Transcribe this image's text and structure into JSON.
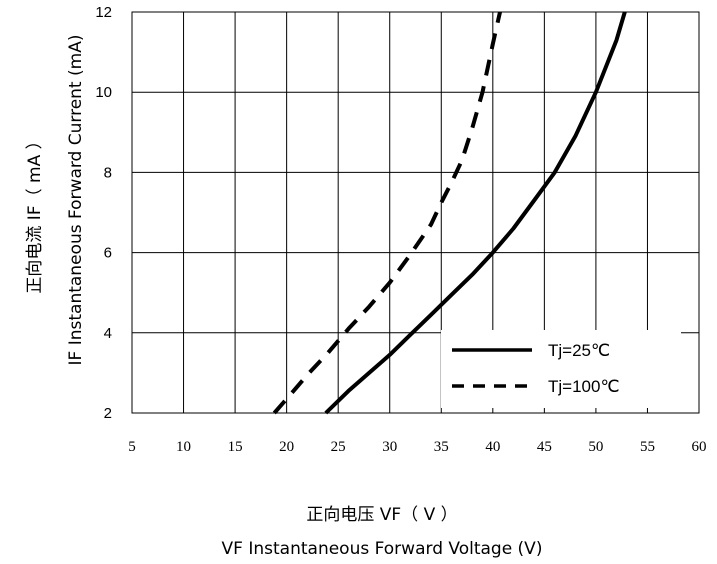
{
  "chart_data": {
    "type": "line",
    "ylabel_cn": "正向电流  IF（ mA ）",
    "ylabel_en": "IF Instantaneous Forward Current (mA)",
    "xlabel_cn": "正向电压  VF（ V ）",
    "xlabel_en": "VF  Instantaneous Forward Voltage (V)",
    "xlim": [
      5,
      60
    ],
    "ylim": [
      2,
      12
    ],
    "x_ticks": [
      "5",
      "10",
      "15",
      "20",
      "25",
      "30",
      "35",
      "40",
      "45",
      "50",
      "55",
      "60"
    ],
    "y_ticks": [
      "2",
      "4",
      "6",
      "8",
      "10",
      "12"
    ],
    "grid": true,
    "legend_position": "bottom-right",
    "series": [
      {
        "name": "Tj=25℃",
        "line_style": "solid",
        "color": "#000000",
        "x": [
          23.8,
          26,
          28,
          30,
          32,
          34,
          36,
          38,
          40,
          42,
          44,
          46,
          48,
          50,
          52,
          52.8
        ],
        "y": [
          2.0,
          2.55,
          3.0,
          3.45,
          3.95,
          4.45,
          4.95,
          5.45,
          6.0,
          6.6,
          7.3,
          8.0,
          8.9,
          10.0,
          11.3,
          12.0
        ]
      },
      {
        "name": "Tj=100℃",
        "line_style": "dashed",
        "color": "#000000",
        "x": [
          18.8,
          20,
          22,
          24,
          26,
          28,
          30,
          32,
          34,
          35,
          36,
          37,
          38,
          39,
          40,
          40.7
        ],
        "y": [
          2.0,
          2.35,
          2.95,
          3.5,
          4.1,
          4.65,
          5.25,
          5.95,
          6.7,
          7.25,
          7.75,
          8.3,
          9.1,
          10.0,
          11.2,
          12.0
        ]
      }
    ]
  }
}
